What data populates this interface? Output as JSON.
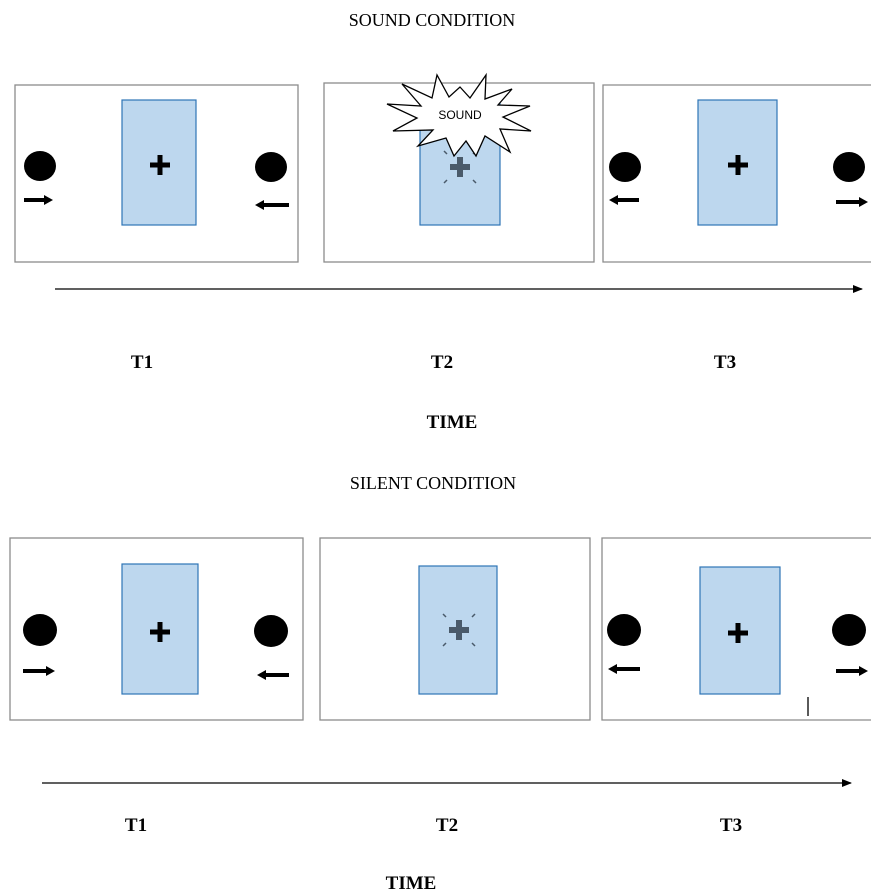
{
  "colors": {
    "panel_border": "#8c8c8c",
    "screen_fill": "#bdd7ee",
    "screen_border": "#2e75b6",
    "ink": "#000000",
    "faded_cross": "#4a5a6a"
  },
  "sound_condition": {
    "title": "SOUND CONDITION",
    "burst_label": "SOUND",
    "time_labels": [
      "T1",
      "T2",
      "T3"
    ],
    "axis_label": "TIME"
  },
  "silent_condition": {
    "title": "SILENT CONDITION",
    "time_labels": [
      "T1",
      "T2",
      "T3"
    ],
    "axis_label": "TIME"
  }
}
